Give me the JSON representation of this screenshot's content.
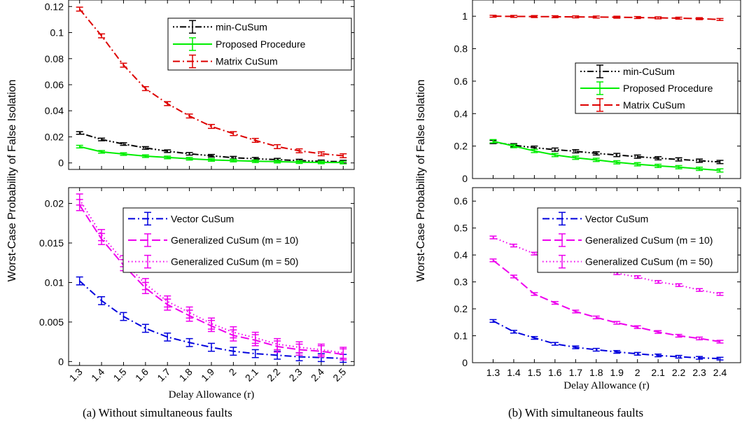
{
  "figure": {
    "ylabel": "Worst-Case Probability of False Isolation",
    "caption_a": "(a) Without simultaneous faults",
    "caption_b": "(b) With simultaneous faults"
  },
  "chart_data": [
    {
      "id": "a-top",
      "type": "line",
      "x": [
        1.3,
        1.4,
        1.5,
        1.6,
        1.7,
        1.8,
        1.9,
        2.0,
        2.1,
        2.2,
        2.3,
        2.4,
        2.5
      ],
      "xlim": [
        1.25,
        2.55
      ],
      "ylim": [
        -0.005,
        0.125
      ],
      "yticks": [
        0,
        0.02,
        0.04,
        0.06,
        0.08,
        0.1,
        0.12
      ],
      "ytick_labels": [
        "0",
        "0.02",
        "0.04",
        "0.06",
        "0.08",
        "0.1",
        "0.12"
      ],
      "legend_position": "top-right",
      "series": [
        {
          "name": "min-CuSum",
          "color": "#000000",
          "dash": "dotdotdash",
          "values": [
            0.023,
            0.018,
            0.0145,
            0.0115,
            0.009,
            0.007,
            0.0055,
            0.004,
            0.0032,
            0.0025,
            0.0018,
            0.0012,
            0.001
          ],
          "err": 0.001
        },
        {
          "name": "Proposed Procedure",
          "color": "#00ee00",
          "dash": "solid",
          "values": [
            0.0125,
            0.0085,
            0.0068,
            0.0052,
            0.0042,
            0.0032,
            0.0023,
            0.0018,
            0.0013,
            0.001,
            0.0006,
            0.0004,
            0.0003
          ],
          "err": 0.001
        },
        {
          "name": "Matrix CuSum",
          "color": "#dd0000",
          "dash": "dashdot",
          "values": [
            0.118,
            0.0975,
            0.075,
            0.057,
            0.0455,
            0.036,
            0.028,
            0.0225,
            0.0173,
            0.0125,
            0.0093,
            0.007,
            0.0055
          ],
          "err": 0.0015
        }
      ]
    },
    {
      "id": "a-bottom",
      "type": "line",
      "x": [
        1.3,
        1.4,
        1.5,
        1.6,
        1.7,
        1.8,
        1.9,
        2.0,
        2.1,
        2.2,
        2.3,
        2.4,
        2.5
      ],
      "xlim": [
        1.25,
        2.55
      ],
      "ylim": [
        -0.0005,
        0.022
      ],
      "yticks": [
        0,
        0.005,
        0.01,
        0.015,
        0.02
      ],
      "ytick_labels": [
        "0",
        "0.005",
        "0.01",
        "0.015",
        "0.02"
      ],
      "xtick_labels": [
        "1.3",
        "1.4",
        "1.5",
        "1.6",
        "1.7",
        "1.8",
        "1.9",
        "2",
        "2.1",
        "2.2",
        "2.3",
        "2.4",
        "2.5"
      ],
      "xlabel": "Delay Allowance (r)",
      "legend_position": "top-right",
      "series": [
        {
          "name": "Vector CuSum",
          "color": "#0000dd",
          "dash": "dashdot",
          "values": [
            0.0102,
            0.0077,
            0.0057,
            0.0042,
            0.0031,
            0.0024,
            0.0018,
            0.0013,
            0.001,
            0.0008,
            0.0006,
            0.0005,
            0.0004
          ],
          "err": 0.0005
        },
        {
          "name": "Generalized CuSum (m = 10)",
          "color": "#ee00ee",
          "dash": "dashed",
          "values": [
            0.0198,
            0.0155,
            0.0122,
            0.0093,
            0.0072,
            0.0058,
            0.0045,
            0.0033,
            0.0027,
            0.0019,
            0.0015,
            0.0013,
            0.0009
          ],
          "err": 0.0007
        },
        {
          "name": "Generalized CuSum (m = 50)",
          "color": "#ee00ee",
          "dash": "dotted",
          "values": [
            0.0205,
            0.016,
            0.0127,
            0.0098,
            0.0076,
            0.0062,
            0.0048,
            0.0037,
            0.003,
            0.0022,
            0.0018,
            0.0015,
            0.0011
          ],
          "err": 0.0007
        }
      ]
    },
    {
      "id": "b-top",
      "type": "line",
      "x": [
        1.3,
        1.4,
        1.5,
        1.6,
        1.7,
        1.8,
        1.9,
        2.0,
        2.1,
        2.2,
        2.3,
        2.4
      ],
      "xlim": [
        1.2,
        2.5
      ],
      "ylim": [
        0,
        1.1
      ],
      "yticks": [
        0,
        0.2,
        0.4,
        0.6,
        0.8,
        1
      ],
      "ytick_labels": [
        "0",
        "0.2",
        "0.4",
        "0.6",
        "0.8",
        "1"
      ],
      "legend_position": "center-right",
      "series": [
        {
          "name": "min-CuSum",
          "color": "#000000",
          "dash": "dotdotdash",
          "values": [
            0.225,
            0.205,
            0.19,
            0.178,
            0.168,
            0.155,
            0.145,
            0.135,
            0.125,
            0.118,
            0.11,
            0.102
          ],
          "err": 0.01
        },
        {
          "name": "Proposed Procedure",
          "color": "#00ee00",
          "dash": "solid",
          "values": [
            0.23,
            0.2,
            0.17,
            0.145,
            0.128,
            0.115,
            0.1,
            0.088,
            0.078,
            0.07,
            0.06,
            0.05
          ],
          "err": 0.01
        },
        {
          "name": "Matrix CuSum",
          "color": "#dd0000",
          "dash": "dashed",
          "values": [
            1.0,
            0.999,
            0.998,
            0.997,
            0.996,
            0.995,
            0.994,
            0.992,
            0.99,
            0.988,
            0.985,
            0.98
          ],
          "err": 0.006
        }
      ]
    },
    {
      "id": "b-bottom",
      "type": "line",
      "x": [
        1.3,
        1.4,
        1.5,
        1.6,
        1.7,
        1.8,
        1.9,
        2.0,
        2.1,
        2.2,
        2.3,
        2.4
      ],
      "xlim": [
        1.2,
        2.5
      ],
      "ylim": [
        0,
        0.65
      ],
      "yticks": [
        0,
        0.1,
        0.2,
        0.3,
        0.4,
        0.5,
        0.6
      ],
      "ytick_labels": [
        "0",
        "0.1",
        "0.2",
        "0.3",
        "0.4",
        "0.5",
        "0.6"
      ],
      "xtick_labels": [
        "1.3",
        "1.4",
        "1.5",
        "1.6",
        "1.7",
        "1.8",
        "1.9",
        "2",
        "2.1",
        "2.2",
        "2.3",
        "2.4"
      ],
      "xlabel": "Delay Allowance (r)",
      "legend_position": "top-right",
      "series": [
        {
          "name": "Vector CuSum",
          "color": "#0000dd",
          "dash": "dashdot",
          "values": [
            0.155,
            0.115,
            0.092,
            0.07,
            0.057,
            0.048,
            0.04,
            0.033,
            0.027,
            0.022,
            0.018,
            0.015
          ],
          "err": 0.005
        },
        {
          "name": "Generalized CuSum (m = 10)",
          "color": "#ee00ee",
          "dash": "dashed",
          "values": [
            0.38,
            0.32,
            0.255,
            0.222,
            0.19,
            0.168,
            0.148,
            0.132,
            0.114,
            0.1,
            0.09,
            0.078
          ],
          "err": 0.005
        },
        {
          "name": "Generalized CuSum (m = 50)",
          "color": "#ee00ee",
          "dash": "dotted",
          "values": [
            0.465,
            0.435,
            0.405,
            0.383,
            0.365,
            0.345,
            0.332,
            0.318,
            0.3,
            0.288,
            0.27,
            0.255
          ],
          "err": 0.005
        }
      ]
    }
  ]
}
